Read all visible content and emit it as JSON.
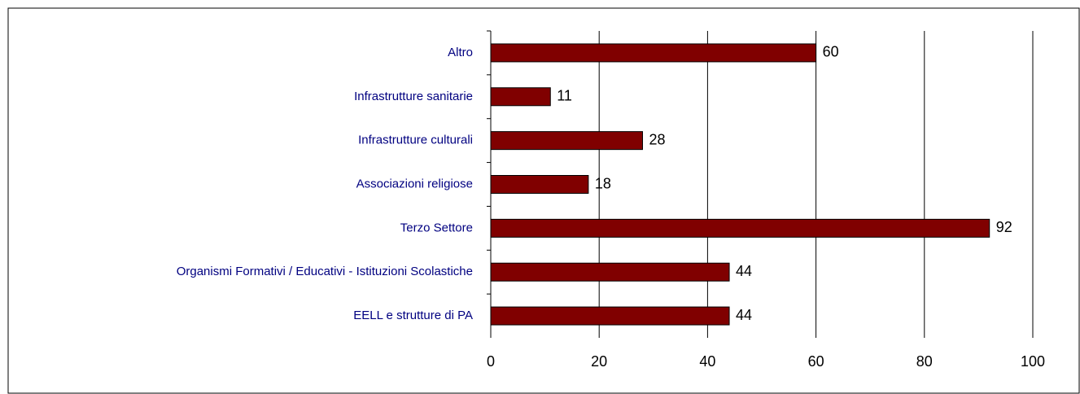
{
  "chart_data": {
    "type": "bar",
    "orientation": "horizontal",
    "categories": [
      "Altro",
      "Infrastrutture sanitarie",
      "Infrastrutture culturali",
      "Associazioni religiose",
      "Terzo Settore",
      "Organismi Formativi / Educativi - Istituzioni Scolastiche",
      "EELL e strutture di PA"
    ],
    "values": [
      60,
      11,
      28,
      18,
      92,
      44,
      44
    ],
    "color": "#800000",
    "xlim": [
      0,
      100
    ],
    "xticks": [
      0,
      20,
      40,
      60,
      80,
      100
    ],
    "grid": true
  }
}
